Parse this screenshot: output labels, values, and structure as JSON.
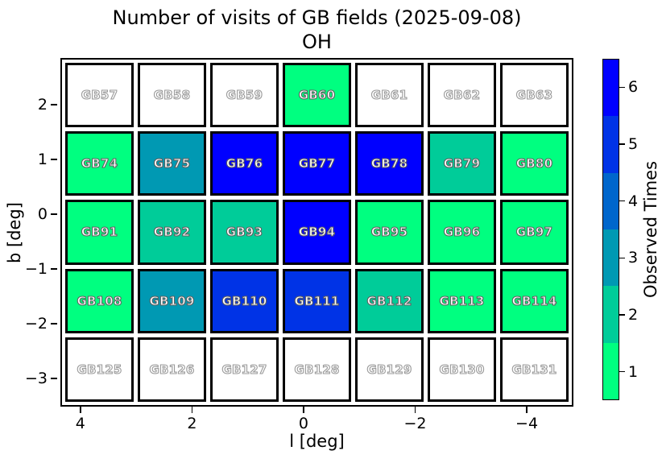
{
  "title": "Number of visits of GB fields (2025-09-08)",
  "subtitle": "OH",
  "chart_data": {
    "type": "heatmap",
    "title": "Number of visits of GB fields (2025-09-08)",
    "subtitle": "OH",
    "xlabel": "l [deg]",
    "ylabel": "b [deg]",
    "xlim": [
      4.4,
      -4.9
    ],
    "ylim": [
      -3.6,
      2.8
    ],
    "grid_shape": {
      "rows": 5,
      "cols": 7
    },
    "x_tick_labels": [
      "4",
      "2",
      "0",
      "−2",
      "−4"
    ],
    "x_tick_pos_pct": [
      3.9,
      25.65,
      47.4,
      69.15,
      90.9
    ],
    "y_tick_labels": [
      "2",
      "1",
      "0",
      "−1",
      "−2",
      "−3"
    ],
    "y_tick_pos_pct": [
      13.4,
      29.1,
      44.8,
      60.5,
      76.2,
      91.9
    ],
    "value_colors": {
      "0": "#ffffff",
      "1": "#00ff80",
      "2": "#00cc99",
      "3": "#0099b3",
      "4": "#0066cc",
      "5": "#0033e6",
      "6": "#0000ff"
    },
    "rows": [
      [
        {
          "id": "GB57",
          "visits": 0
        },
        {
          "id": "GB58",
          "visits": 0
        },
        {
          "id": "GB59",
          "visits": 0
        },
        {
          "id": "GB60",
          "visits": 1
        },
        {
          "id": "GB61",
          "visits": 0
        },
        {
          "id": "GB62",
          "visits": 0
        },
        {
          "id": "GB63",
          "visits": 0
        }
      ],
      [
        {
          "id": "GB74",
          "visits": 1
        },
        {
          "id": "GB75",
          "visits": 3
        },
        {
          "id": "GB76",
          "visits": 6
        },
        {
          "id": "GB77",
          "visits": 6
        },
        {
          "id": "GB78",
          "visits": 6
        },
        {
          "id": "GB79",
          "visits": 2
        },
        {
          "id": "GB80",
          "visits": 1
        }
      ],
      [
        {
          "id": "GB91",
          "visits": 1
        },
        {
          "id": "GB92",
          "visits": 2
        },
        {
          "id": "GB93",
          "visits": 2
        },
        {
          "id": "GB94",
          "visits": 6
        },
        {
          "id": "GB95",
          "visits": 1
        },
        {
          "id": "GB96",
          "visits": 1
        },
        {
          "id": "GB97",
          "visits": 1
        }
      ],
      [
        {
          "id": "GB108",
          "visits": 1
        },
        {
          "id": "GB109",
          "visits": 3
        },
        {
          "id": "GB110",
          "visits": 5
        },
        {
          "id": "GB111",
          "visits": 5
        },
        {
          "id": "GB112",
          "visits": 2
        },
        {
          "id": "GB113",
          "visits": 1
        },
        {
          "id": "GB114",
          "visits": 1
        }
      ],
      [
        {
          "id": "GB125",
          "visits": 0
        },
        {
          "id": "GB126",
          "visits": 0
        },
        {
          "id": "GB127",
          "visits": 0
        },
        {
          "id": "GB128",
          "visits": 0
        },
        {
          "id": "GB129",
          "visits": 0
        },
        {
          "id": "GB130",
          "visits": 0
        },
        {
          "id": "GB131",
          "visits": 0
        }
      ]
    ],
    "colorbar": {
      "label": "Observed Times",
      "tick_labels_top_to_bottom": [
        "6",
        "5",
        "4",
        "3",
        "2",
        "1"
      ],
      "tick_pos_pct_top_to_bottom": [
        8.33,
        25.0,
        41.67,
        58.33,
        75.0,
        91.67
      ],
      "segment_values_top_to_bottom": [
        6,
        5,
        4,
        3,
        2,
        1
      ],
      "position": "right"
    }
  }
}
